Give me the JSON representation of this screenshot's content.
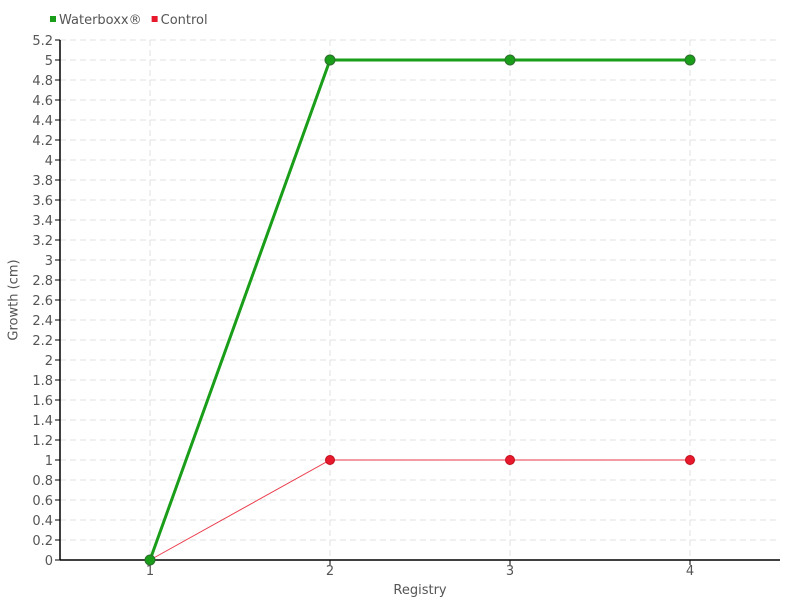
{
  "chart_data": {
    "type": "line",
    "title": "",
    "xlabel": "Registry",
    "ylabel": "Growth (cm)",
    "x": [
      1,
      2,
      3,
      4
    ],
    "xlim": [
      0.5,
      4.5
    ],
    "ylim": [
      0,
      5.2
    ],
    "ytick_step": 0.2,
    "grid": true,
    "legend_placement": "top-left",
    "series": [
      {
        "name": "Waterboxx®",
        "values": [
          0,
          5,
          5,
          5
        ],
        "color": "#1a9e1a"
      },
      {
        "name": "Control",
        "values": [
          0,
          1,
          1,
          1
        ],
        "color": "#e8192c"
      }
    ]
  }
}
